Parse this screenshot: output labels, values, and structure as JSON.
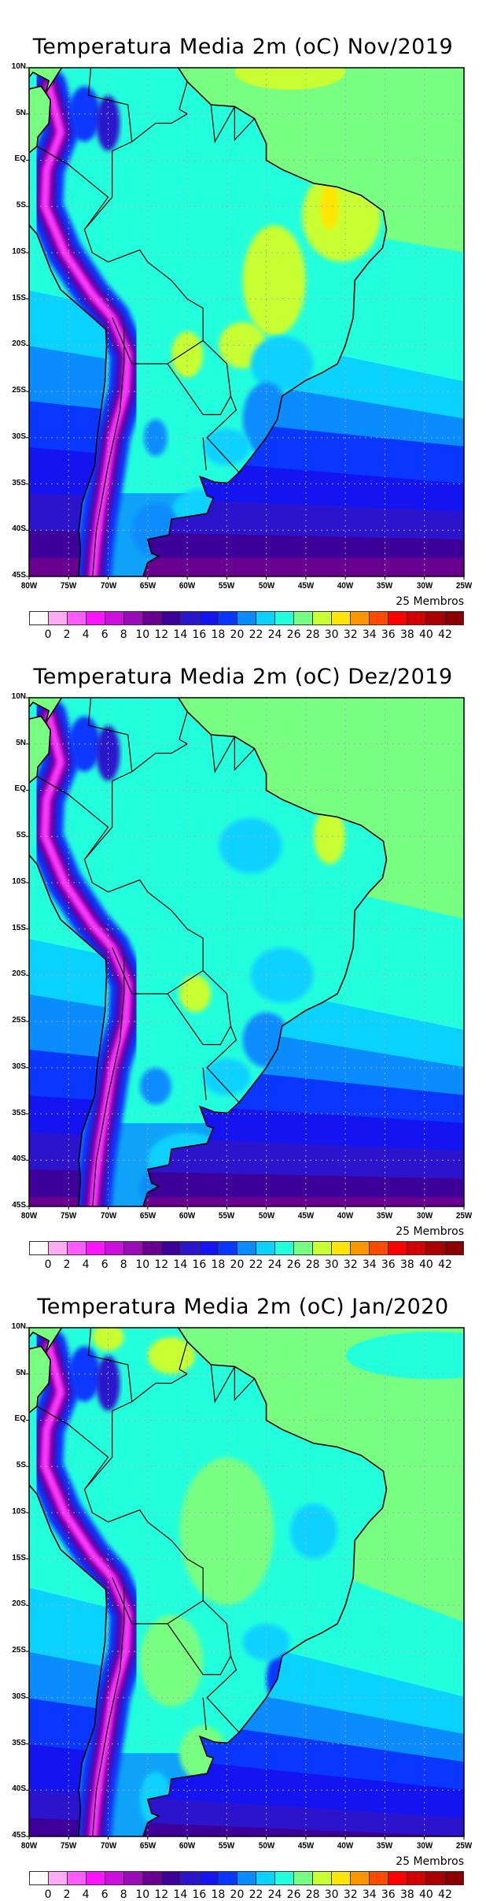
{
  "panels": [
    {
      "title": "Temperatura Media 2m (oC) Nov/2019",
      "month": "Nov/2019"
    },
    {
      "title": "Temperatura Media 2m (oC) Dez/2019",
      "month": "Dez/2019"
    },
    {
      "title": "Temperatura Media 2m (oC) Jan/2020",
      "month": "Jan/2020"
    }
  ],
  "lat_labels": [
    "10N",
    "5N",
    "EQ",
    "5S",
    "10S",
    "15S",
    "20S",
    "25S",
    "30S",
    "35S",
    "40S",
    "45S"
  ],
  "lon_labels": [
    "80W",
    "75W",
    "70W",
    "65W",
    "60W",
    "55W",
    "50W",
    "45W",
    "40W",
    "35W",
    "30W",
    "25W"
  ],
  "members_label": "25 Membros",
  "colorbar": {
    "labels": [
      "0",
      "2",
      "4",
      "6",
      "8",
      "10",
      "12",
      "14",
      "16",
      "18",
      "20",
      "22",
      "24",
      "26",
      "28",
      "30",
      "32",
      "34",
      "36",
      "38",
      "40",
      "42"
    ],
    "colors": [
      "#ffffff",
      "#ffaaf5",
      "#ff5cff",
      "#ff14ff",
      "#cc0fdd",
      "#9a0cb9",
      "#6a0090",
      "#3d0099",
      "#2c14cc",
      "#1414f0",
      "#0a37ff",
      "#0a8cff",
      "#0ad2ff",
      "#22ffdd",
      "#78ff82",
      "#c8ff32",
      "#ffe600",
      "#ff9600",
      "#ff4b00",
      "#ff0000",
      "#d20000",
      "#aa0000",
      "#8a0000"
    ]
  }
}
